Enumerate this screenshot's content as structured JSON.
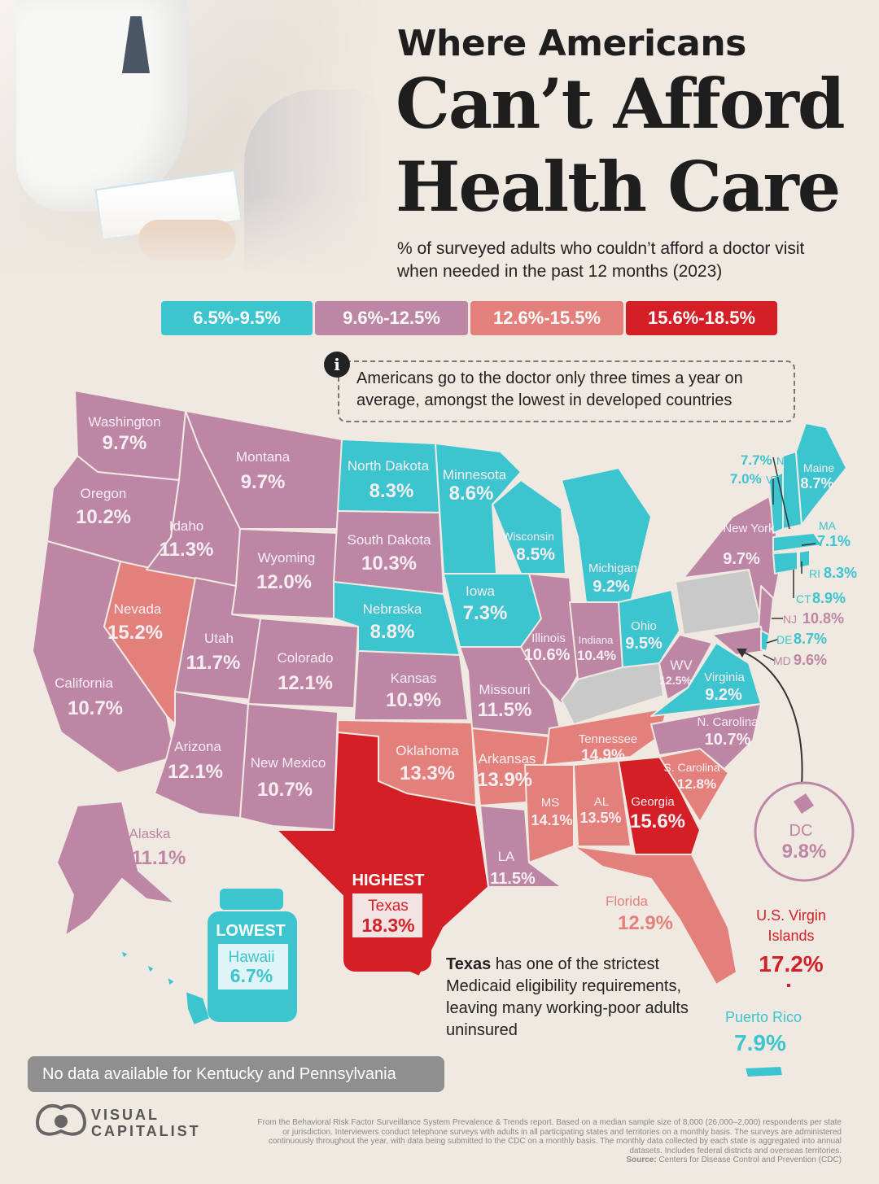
{
  "title": {
    "line1": "Where Americans",
    "line2": "Can’t Afford",
    "line3": "Health Care"
  },
  "subtitle": "% of surveyed adults who couldn’t afford a doctor visit when needed in the past 12 months (2023)",
  "legend": [
    {
      "label": "6.5%-9.5%",
      "color": "#3cc4cf"
    },
    {
      "label": "9.6%-12.5%",
      "color": "#bd86a5"
    },
    {
      "label": "12.6%-15.5%",
      "color": "#e4807b"
    },
    {
      "label": "15.6%-18.5%",
      "color": "#d41f26"
    }
  ],
  "info": {
    "icon": "info-icon",
    "glyph": "i",
    "text": "Americans go to the doctor only three times a year on average, amongst the lowest in developed countries"
  },
  "colors": {
    "teal": "#3cc4cf",
    "mauve": "#bd86a5",
    "salmon": "#e4807b",
    "red": "#d41f26",
    "nodata": "#c9c9c9",
    "background": "#efe9e1"
  },
  "states": [
    {
      "id": "washington",
      "name": "Washington",
      "value": "9.7%"
    },
    {
      "id": "oregon",
      "name": "Oregon",
      "value": "10.2%"
    },
    {
      "id": "california",
      "name": "California",
      "value": "10.7%"
    },
    {
      "id": "nevada",
      "name": "Nevada",
      "value": "15.2%"
    },
    {
      "id": "idaho",
      "name": "Idaho",
      "value": "11.3%"
    },
    {
      "id": "montana",
      "name": "Montana",
      "value": "9.7%"
    },
    {
      "id": "wyoming",
      "name": "Wyoming",
      "value": "12.0%"
    },
    {
      "id": "utah",
      "name": "Utah",
      "value": "11.7%"
    },
    {
      "id": "arizona",
      "name": "Arizona",
      "value": "12.1%"
    },
    {
      "id": "colorado",
      "name": "Colorado",
      "value": "12.1%"
    },
    {
      "id": "new-mexico",
      "name": "New Mexico",
      "value": "10.7%"
    },
    {
      "id": "north-dakota",
      "name": "North Dakota",
      "value": "8.3%"
    },
    {
      "id": "south-dakota",
      "name": "South Dakota",
      "value": "10.3%"
    },
    {
      "id": "nebraska",
      "name": "Nebraska",
      "value": "8.8%"
    },
    {
      "id": "kansas",
      "name": "Kansas",
      "value": "10.9%"
    },
    {
      "id": "oklahoma",
      "name": "Oklahoma",
      "value": "13.3%"
    },
    {
      "id": "minnesota",
      "name": "Minnesota",
      "value": "8.6%"
    },
    {
      "id": "iowa",
      "name": "Iowa",
      "value": "7.3%"
    },
    {
      "id": "missouri",
      "name": "Missouri",
      "value": "11.5%"
    },
    {
      "id": "arkansas",
      "name": "Arkansas",
      "value": "13.9%"
    },
    {
      "id": "louisiana",
      "name": "LA",
      "value": "11.5%"
    },
    {
      "id": "wisconsin",
      "name": "Wisconsin",
      "value": "8.5%"
    },
    {
      "id": "illinois",
      "name": "Illinois",
      "value": "10.6%"
    },
    {
      "id": "michigan",
      "name": "Michigan",
      "value": "9.2%"
    },
    {
      "id": "indiana",
      "name": "Indiana",
      "value": "10.4%"
    },
    {
      "id": "ohio",
      "name": "Ohio",
      "value": "9.5%"
    },
    {
      "id": "tennessee",
      "name": "Tennessee",
      "value": "14.9%"
    },
    {
      "id": "mississippi",
      "name": "MS",
      "value": "14.1%"
    },
    {
      "id": "alabama",
      "name": "AL",
      "value": "13.5%"
    },
    {
      "id": "georgia",
      "name": "Georgia",
      "value": "15.6%"
    },
    {
      "id": "florida",
      "name": "Florida",
      "value": "12.9%"
    },
    {
      "id": "south-carolina",
      "name": "S. Carolina",
      "value": "12.8%"
    },
    {
      "id": "north-carolina",
      "name": "N. Carolina",
      "value": "10.7%"
    },
    {
      "id": "virginia",
      "name": "Virginia",
      "value": "9.2%"
    },
    {
      "id": "west-virginia",
      "name": "WV",
      "value": "12.5%"
    },
    {
      "id": "new-york",
      "name": "New York",
      "value": "9.7%"
    },
    {
      "id": "maine",
      "name": "Maine",
      "value": "8.7%"
    },
    {
      "id": "new-hampshire",
      "name": "NH",
      "value": "7.7%"
    },
    {
      "id": "vermont",
      "name": "VT",
      "value": "7.0%"
    },
    {
      "id": "massachusetts",
      "name": "MA",
      "value": "7.1%"
    },
    {
      "id": "rhode-island",
      "name": "RI",
      "value": "8.3%"
    },
    {
      "id": "connecticut",
      "name": "CT",
      "value": "8.9%"
    },
    {
      "id": "new-jersey",
      "name": "NJ",
      "value": "10.8%"
    },
    {
      "id": "delaware",
      "name": "DE",
      "value": "8.7%"
    },
    {
      "id": "maryland",
      "name": "MD",
      "value": "9.6%"
    },
    {
      "id": "alaska",
      "name": "Alaska",
      "value": "11.1%"
    },
    {
      "id": "hawaii",
      "name": "Hawaii",
      "value": "6.7%"
    },
    {
      "id": "dc",
      "name": "DC",
      "value": "9.8%"
    },
    {
      "id": "virgin-islands",
      "name": "U.S. Virgin Islands",
      "value": "17.2%"
    },
    {
      "id": "puerto-rico",
      "name": "Puerto Rico",
      "value": "7.9%"
    },
    {
      "id": "texas",
      "name": "Texas",
      "value": "18.3%"
    },
    {
      "id": "kentucky",
      "name": "Kentucky",
      "value": ""
    },
    {
      "id": "pennsylvania",
      "name": "Pennsylvania",
      "value": ""
    }
  ],
  "callouts": {
    "highest": {
      "label": "HIGHEST",
      "name": "Texas",
      "value": "18.3%"
    },
    "lowest": {
      "label": "LOWEST",
      "name": "Hawaii",
      "value": "6.7%"
    },
    "vi_line1": "U.S. Virgin",
    "vi_line2": "Islands"
  },
  "texas_note": {
    "bold": "Texas",
    "rest": " has one of the strictest Medicaid eligibility requirements, leaving many working-poor adults uninsured"
  },
  "nodata_note": "No data available for Kentucky and Pennsylvania",
  "footer": {
    "text": "From the Behavioral Risk Factor Surveillance System Prevalence & Trends report. Based on a median sample size of 8,000 (26,000–2,000) respondents per state or jurisdiction. Interviewers conduct telephone surveys with adults in all participating states and territories on a monthly basis. The surveys are administered continuously throughout the year, with data being submitted to the CDC on a monthly basis. The monthly data collected by each state is aggregated into annual datasets. Includes federal districts and overseas territories.",
    "source_label": "Source:",
    "source": "Centers for Disease Control and Prevention (CDC)"
  },
  "brand": {
    "line1": "VISUAL",
    "line2": "CAPITALIST"
  }
}
